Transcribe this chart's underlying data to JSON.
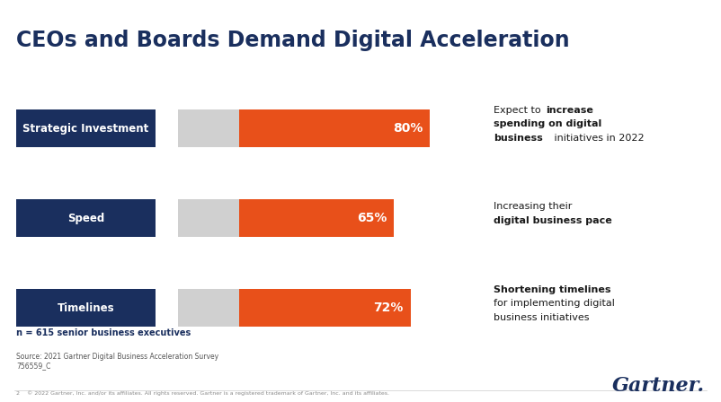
{
  "title": "CEOs and Boards Demand Digital Acceleration",
  "title_color": "#1a2f5e",
  "background_color": "#ffffff",
  "categories": [
    "Strategic Investment",
    "Speed",
    "Timelines"
  ],
  "values": [
    80,
    65,
    72
  ],
  "remainder_color": "#d0d0d0",
  "bar_color": "#e8501a",
  "label_bg_color": "#1a2f5e",
  "bar_text_color": "#ffffff",
  "n_label": "n = 615 senior business executives",
  "source_label": "Source: 2021 Gartner Digital Business Acceleration Survey\n756559_C",
  "copyright_label": "2    © 2022 Gartner, Inc. and/or its affiliates. All rights reserved. Gartner is a registered trademark of Gartner, Inc. and its affiliates.",
  "gartner_label": "Gartner.",
  "figsize": [
    8.02,
    4.48
  ],
  "dpi": 100
}
